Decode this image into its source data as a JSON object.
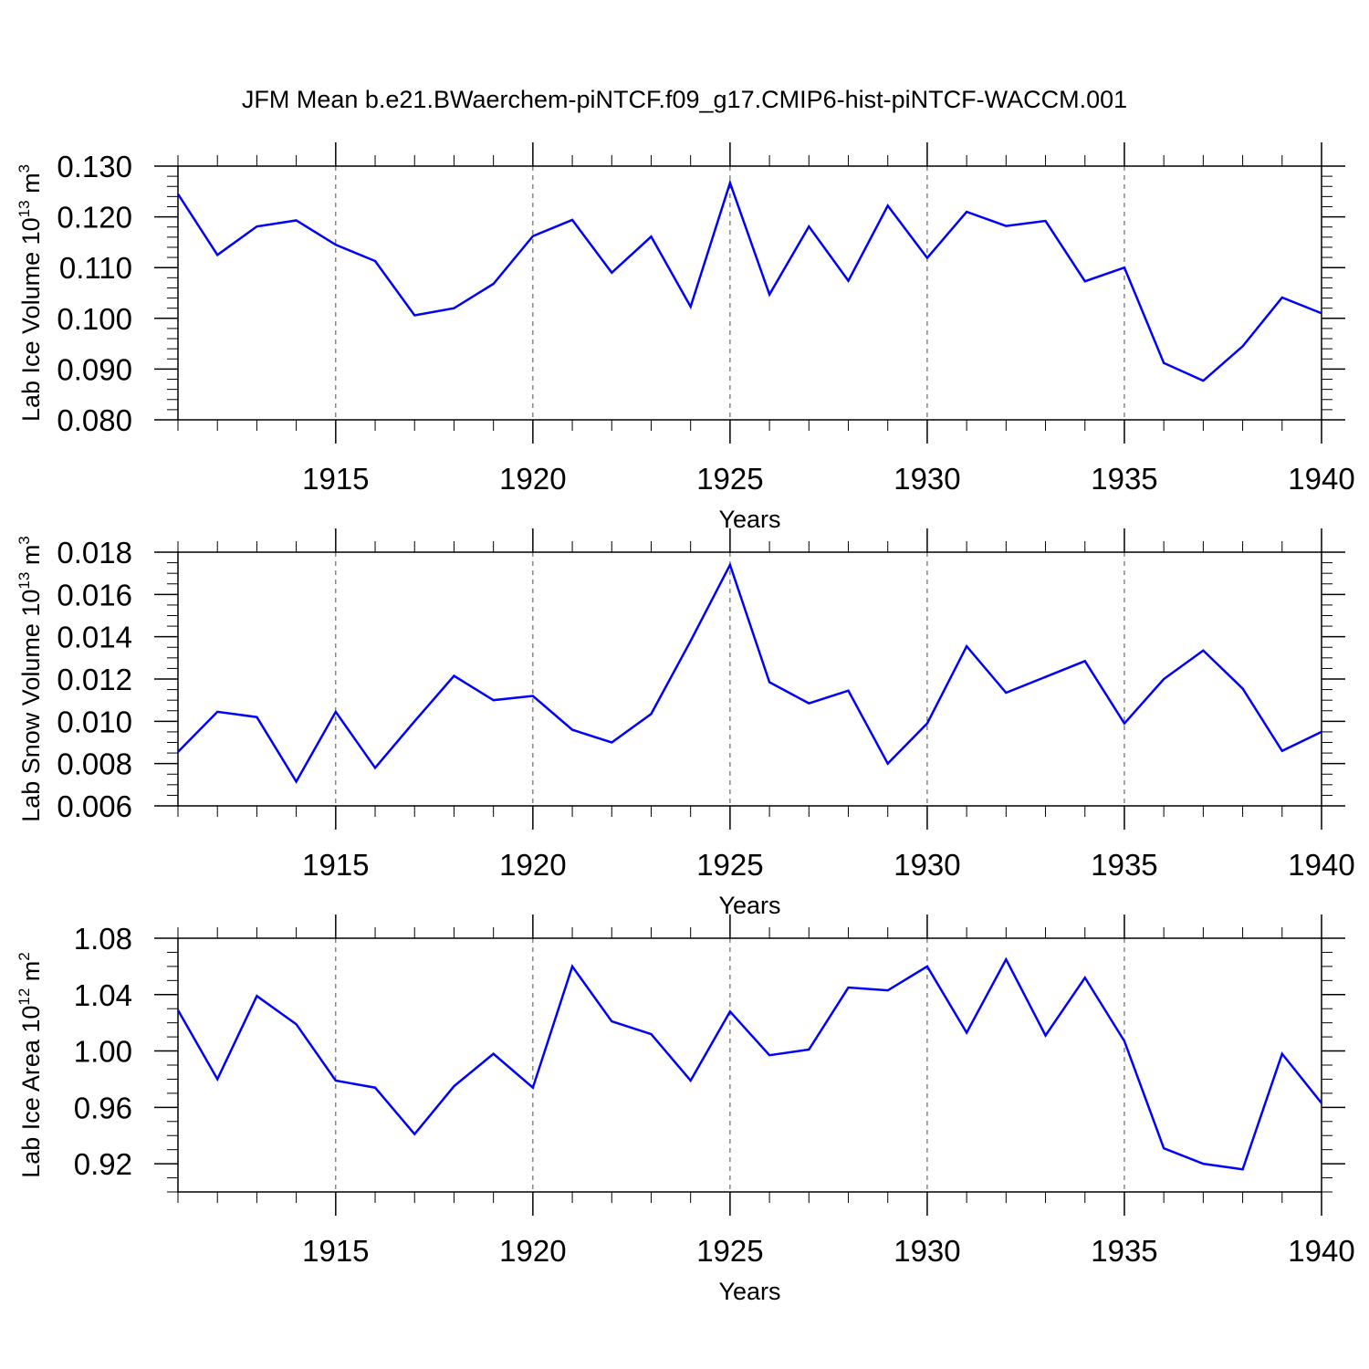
{
  "title": "JFM Mean b.e21.BWaerchem-piNTCF.f09_g17.CMIP6-hist-piNTCF-WACCM.001",
  "colors": {
    "line": "#0000ff",
    "axis": "#000000",
    "grid": "#000000",
    "background": "#ffffff"
  },
  "chart_data": [
    {
      "type": "line",
      "ylabel": "Lab Ice Volume 10",
      "ylabel_exp": "13",
      "ylabel_unit": " m",
      "ylabel_unit_exp": "3",
      "xlabel": "Years",
      "xlim": [
        1911,
        1940
      ],
      "ylim": [
        0.08,
        0.13
      ],
      "yticks": [
        0.08,
        0.09,
        0.1,
        0.11,
        0.12,
        0.13
      ],
      "ytick_labels": [
        "0.080",
        "0.090",
        "0.100",
        "0.110",
        "0.120",
        "0.130"
      ],
      "yminor_step": 0.002,
      "xticks": [
        1915,
        1920,
        1925,
        1930,
        1935,
        1940
      ],
      "xtick_labels": [
        "1915",
        "1920",
        "1925",
        "1930",
        "1935",
        "1940"
      ],
      "vgrid": [
        1915,
        1920,
        1925,
        1930,
        1935
      ],
      "series": [
        {
          "name": "Lab Ice Volume",
          "x": [
            1911,
            1912,
            1913,
            1914,
            1915,
            1916,
            1917,
            1918,
            1919,
            1920,
            1921,
            1922,
            1923,
            1924,
            1925,
            1926,
            1927,
            1928,
            1929,
            1930,
            1931,
            1932,
            1933,
            1934,
            1935,
            1936,
            1937,
            1938,
            1939,
            1940
          ],
          "y": [
            0.1245,
            0.1125,
            0.1181,
            0.1193,
            0.1145,
            0.1113,
            0.1006,
            0.102,
            0.1068,
            0.1162,
            0.1194,
            0.109,
            0.1161,
            0.1023,
            0.1267,
            0.1047,
            0.1181,
            0.1074,
            0.1222,
            0.1119,
            0.121,
            0.1182,
            0.1192,
            0.1073,
            0.11,
            0.0912,
            0.0877,
            0.0945,
            0.1041,
            0.101
          ]
        }
      ]
    },
    {
      "type": "line",
      "ylabel": "Lab Snow Volume 10",
      "ylabel_exp": "13",
      "ylabel_unit": " m",
      "ylabel_unit_exp": "3",
      "xlabel": "Years",
      "xlim": [
        1911,
        1940
      ],
      "ylim": [
        0.006,
        0.018
      ],
      "yticks": [
        0.006,
        0.008,
        0.01,
        0.012,
        0.014,
        0.016,
        0.018
      ],
      "ytick_labels": [
        "0.006",
        "0.008",
        "0.010",
        "0.012",
        "0.014",
        "0.016",
        "0.018"
      ],
      "yminor_step": 0.0005,
      "xticks": [
        1915,
        1920,
        1925,
        1930,
        1935,
        1940
      ],
      "xtick_labels": [
        "1915",
        "1920",
        "1925",
        "1930",
        "1935",
        "1940"
      ],
      "vgrid": [
        1915,
        1920,
        1925,
        1930,
        1935
      ],
      "series": [
        {
          "name": "Lab Snow Volume",
          "x": [
            1911,
            1912,
            1913,
            1914,
            1915,
            1916,
            1917,
            1918,
            1919,
            1920,
            1921,
            1922,
            1923,
            1924,
            1925,
            1926,
            1927,
            1928,
            1929,
            1930,
            1931,
            1932,
            1933,
            1934,
            1935,
            1936,
            1937,
            1938,
            1939,
            1940
          ],
          "y": [
            0.00855,
            0.01045,
            0.0102,
            0.00715,
            0.01045,
            0.0078,
            0.01,
            0.01215,
            0.011,
            0.0112,
            0.0096,
            0.009,
            0.01035,
            0.0138,
            0.0174,
            0.01185,
            0.01085,
            0.01145,
            0.008,
            0.0099,
            0.01355,
            0.01135,
            0.0121,
            0.01285,
            0.0099,
            0.012,
            0.01335,
            0.01155,
            0.0086,
            0.0095
          ]
        }
      ]
    },
    {
      "type": "line",
      "ylabel": "Lab Ice Area 10",
      "ylabel_exp": "12",
      "ylabel_unit": " m",
      "ylabel_unit_exp": "2",
      "xlabel": "Years",
      "xlim": [
        1911,
        1940
      ],
      "ylim": [
        0.9,
        1.08
      ],
      "yticks": [
        0.92,
        0.96,
        1.0,
        1.04,
        1.08
      ],
      "ytick_labels": [
        "0.92",
        "0.96",
        "1.00",
        "1.04",
        "1.08"
      ],
      "yminor_step": 0.01,
      "xticks": [
        1915,
        1920,
        1925,
        1930,
        1935,
        1940
      ],
      "xtick_labels": [
        "1915",
        "1920",
        "1925",
        "1930",
        "1935",
        "1940"
      ],
      "vgrid": [
        1915,
        1920,
        1925,
        1930,
        1935
      ],
      "series": [
        {
          "name": "Lab Ice Area",
          "x": [
            1911,
            1912,
            1913,
            1914,
            1915,
            1916,
            1917,
            1918,
            1919,
            1920,
            1921,
            1922,
            1923,
            1924,
            1925,
            1926,
            1927,
            1928,
            1929,
            1930,
            1931,
            1932,
            1933,
            1934,
            1935,
            1936,
            1937,
            1938,
            1939,
            1940
          ],
          "y": [
            1.029,
            0.98,
            1.039,
            1.019,
            0.979,
            0.974,
            0.941,
            0.975,
            0.998,
            0.974,
            1.06,
            1.021,
            1.012,
            0.979,
            1.028,
            0.997,
            1.001,
            1.045,
            1.043,
            1.06,
            1.013,
            1.065,
            1.011,
            1.052,
            1.007,
            0.931,
            0.92,
            0.916,
            0.998,
            0.963
          ]
        }
      ]
    }
  ]
}
